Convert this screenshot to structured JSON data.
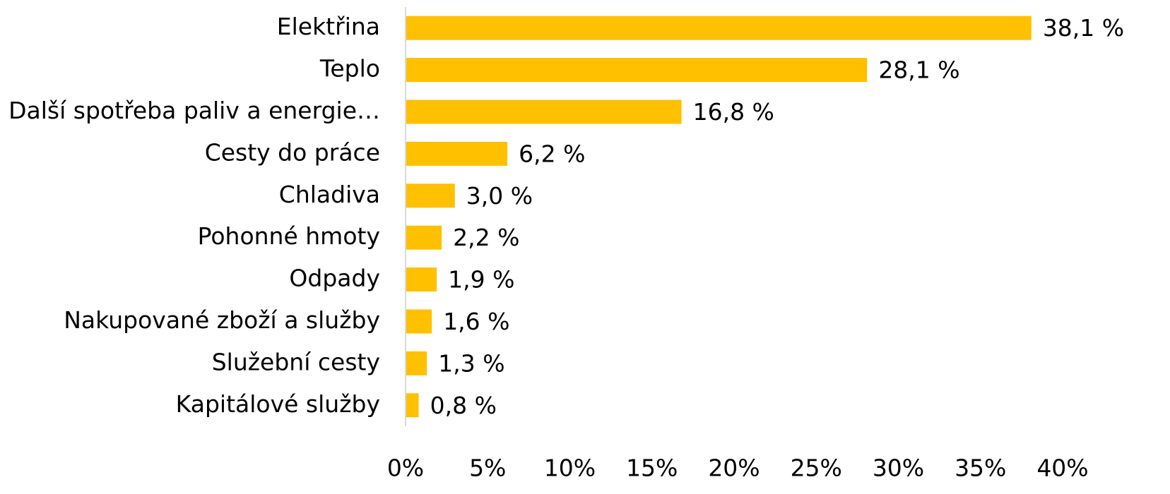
{
  "chart_data": {
    "type": "barh",
    "categories": [
      "Elektřina",
      "Teplo",
      "Další spotřeba paliv a energie…",
      "Cesty do práce",
      "Chladiva",
      "Pohonné hmoty",
      "Odpady",
      "Nakupované zboží a služby",
      "Služební cesty",
      "Kapitálové služby"
    ],
    "values": [
      38.1,
      28.1,
      16.8,
      6.2,
      3.0,
      2.2,
      1.9,
      1.6,
      1.3,
      0.8
    ],
    "value_labels": [
      "38,1 %",
      "28,1 %",
      "16,8 %",
      "6,2 %",
      "3,0 %",
      "2,2 %",
      "1,9 %",
      "1,6 %",
      "1,3 %",
      "0,8 %"
    ],
    "color": "#ffc000",
    "xlim": [
      0,
      40
    ],
    "xticks": [
      {
        "value": 0,
        "label": "0%"
      },
      {
        "value": 5,
        "label": "5%"
      },
      {
        "value": 10,
        "label": "10%"
      },
      {
        "value": 15,
        "label": "15%"
      },
      {
        "value": 20,
        "label": "20%"
      },
      {
        "value": 25,
        "label": "25%"
      },
      {
        "value": 30,
        "label": "30%"
      },
      {
        "value": 35,
        "label": "35%"
      },
      {
        "value": 40,
        "label": "40%"
      }
    ],
    "grid": false
  }
}
